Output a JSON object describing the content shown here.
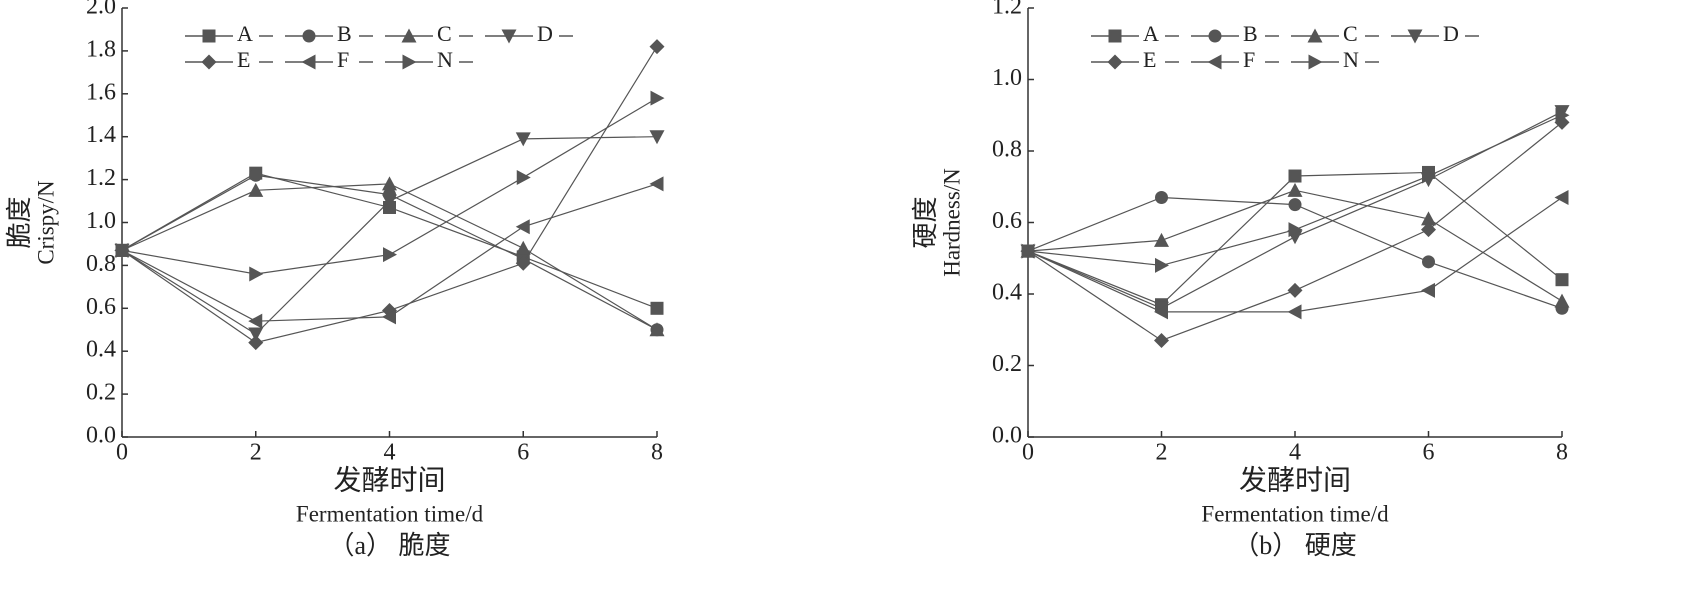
{
  "chart_data": [
    {
      "type": "line",
      "ylabel": [
        "脆度",
        "Crispy/N"
      ],
      "xlabel": [
        "发酵时间",
        "Fermentation time/d"
      ],
      "caption": "（a） 脆度",
      "x": [
        0,
        2,
        4,
        6,
        8
      ],
      "xlim": [
        0,
        8
      ],
      "xticks": [
        0,
        2,
        4,
        6,
        8
      ],
      "ylim": [
        0,
        2
      ],
      "yticks": [
        {
          "value": 0,
          "label": "0.0"
        },
        0.2,
        0.4,
        0.6,
        0.8,
        {
          "value": 1,
          "label": "1.0"
        },
        1.2,
        1.4,
        1.6,
        1.8,
        {
          "value": 2,
          "label": "2.0"
        }
      ],
      "series": [
        {
          "name": "A",
          "color": "#555555",
          "marker": "square",
          "values": [
            0.87,
            1.23,
            1.07,
            0.84,
            0.6
          ]
        },
        {
          "name": "B",
          "color": "#555555",
          "marker": "circle",
          "values": [
            0.87,
            1.22,
            1.13,
            0.83,
            0.5
          ]
        },
        {
          "name": "C",
          "color": "#555555",
          "marker": "up",
          "values": [
            0.87,
            1.15,
            1.18,
            0.88,
            0.5
          ]
        },
        {
          "name": "D",
          "color": "#555555",
          "marker": "down",
          "values": [
            0.87,
            0.48,
            1.1,
            1.39,
            1.4
          ]
        },
        {
          "name": "E",
          "color": "#555555",
          "marker": "diamond",
          "values": [
            0.87,
            0.44,
            0.59,
            0.81,
            1.82
          ]
        },
        {
          "name": "F",
          "color": "#555555",
          "marker": "left",
          "values": [
            0.87,
            0.54,
            0.56,
            0.98,
            1.18
          ]
        },
        {
          "name": "N",
          "color": "#555555",
          "marker": "right",
          "values": [
            0.87,
            0.76,
            0.85,
            1.21,
            1.58
          ]
        }
      ]
    },
    {
      "type": "line",
      "ylabel": [
        "硬度",
        "Hardness/N"
      ],
      "xlabel": [
        "发酵时间",
        "Fermentation time/d"
      ],
      "caption": "（b） 硬度",
      "x": [
        0,
        2,
        4,
        6,
        8
      ],
      "xlim": [
        0,
        8
      ],
      "xticks": [
        0,
        2,
        4,
        6,
        8
      ],
      "ylim": [
        0,
        1.2
      ],
      "yticks": [
        {
          "value": 0,
          "label": "0.0"
        },
        0.2,
        0.4,
        0.6,
        0.8,
        {
          "value": 1,
          "label": "1.0"
        },
        1.2
      ],
      "series": [
        {
          "name": "A",
          "color": "#555555",
          "marker": "square",
          "values": [
            0.52,
            0.37,
            0.73,
            0.74,
            0.44
          ]
        },
        {
          "name": "B",
          "color": "#555555",
          "marker": "circle",
          "values": [
            0.52,
            0.67,
            0.65,
            0.49,
            0.36
          ]
        },
        {
          "name": "C",
          "color": "#555555",
          "marker": "up",
          "values": [
            0.52,
            0.55,
            0.69,
            0.61,
            0.38
          ]
        },
        {
          "name": "D",
          "color": "#555555",
          "marker": "down",
          "values": [
            0.52,
            0.36,
            0.56,
            0.72,
            0.91
          ]
        },
        {
          "name": "E",
          "color": "#555555",
          "marker": "diamond",
          "values": [
            0.52,
            0.27,
            0.41,
            0.58,
            0.88
          ]
        },
        {
          "name": "F",
          "color": "#555555",
          "marker": "left",
          "values": [
            0.52,
            0.35,
            0.35,
            0.41,
            0.67
          ]
        },
        {
          "name": "N",
          "color": "#555555",
          "marker": "right",
          "values": [
            0.52,
            0.48,
            0.58,
            0.73,
            0.9
          ]
        }
      ]
    }
  ]
}
